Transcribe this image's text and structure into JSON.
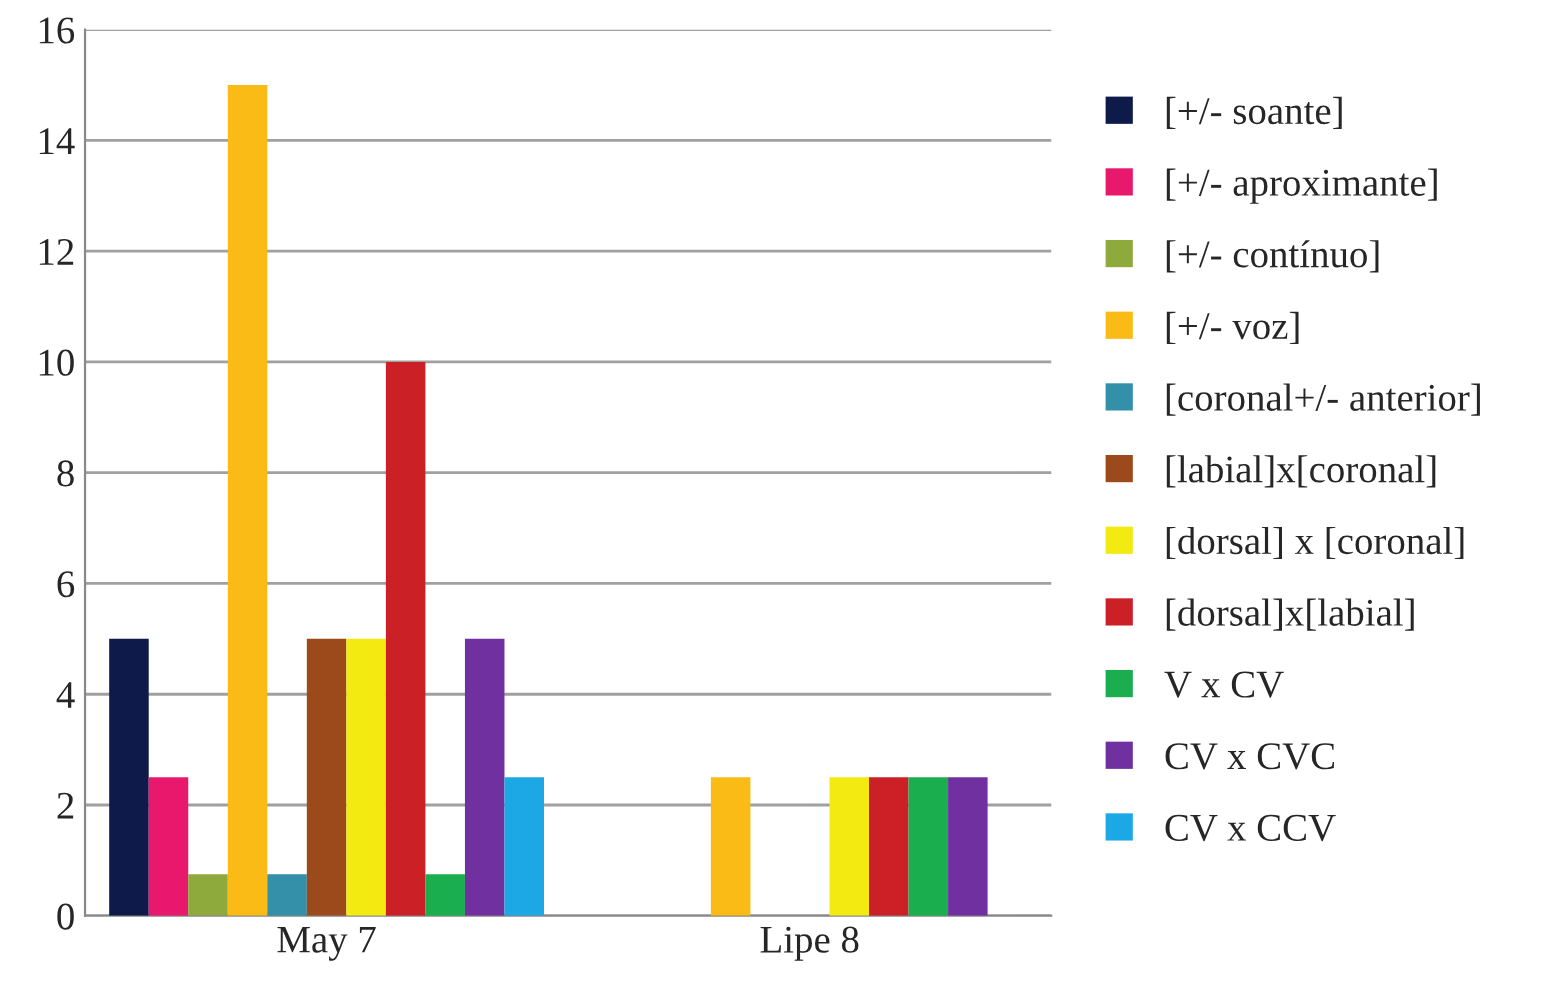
{
  "chart_data": {
    "type": "bar",
    "categories": [
      "May 7",
      "Lipe 8"
    ],
    "series": [
      {
        "name": "[+/- soante]",
        "color": "#0d1a4a",
        "values": [
          5,
          null
        ]
      },
      {
        "name": "[+/- aproximante]",
        "color": "#e8186c",
        "values": [
          2.5,
          null
        ]
      },
      {
        "name": "[+/- contínuo]",
        "color": "#8faa3c",
        "values": [
          0.75,
          null
        ]
      },
      {
        "name": "[+/- voz]",
        "color": "#fbbb16",
        "values": [
          15,
          2.5
        ]
      },
      {
        "name": "[coronal+/- anterior]",
        "color": "#3390a8",
        "values": [
          0.75,
          null
        ]
      },
      {
        "name": "[labial]x[coronal]",
        "color": "#9c4a1c",
        "values": [
          5,
          null
        ]
      },
      {
        "name": "[dorsal] x [coronal]",
        "color": "#f2ea10",
        "values": [
          5,
          2.5
        ]
      },
      {
        "name": "[dorsal]x[labial]",
        "color": "#cc2027",
        "values": [
          10,
          2.5
        ]
      },
      {
        "name": "V x CV",
        "color": "#1bae4f",
        "values": [
          0.75,
          2.5
        ]
      },
      {
        "name": "CV x CVC",
        "color": "#7030a0",
        "values": [
          5,
          2.5
        ]
      },
      {
        "name": "CV x CCV",
        "color": "#1ba8e5",
        "values": [
          2.5,
          null
        ]
      }
    ],
    "ylim": [
      0,
      16
    ],
    "yticks": [
      0,
      2,
      4,
      6,
      8,
      10,
      12,
      14,
      16
    ],
    "grid": "y",
    "legend": "right"
  }
}
